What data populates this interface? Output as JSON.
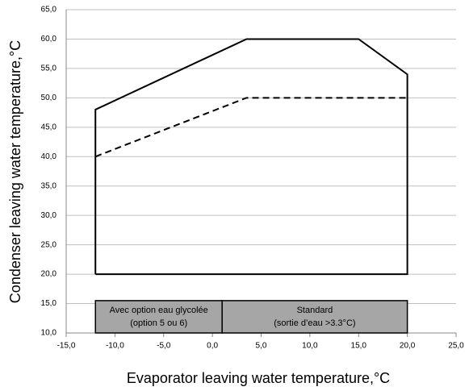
{
  "chart_data": {
    "type": "line",
    "xlabel": "Evaporator leaving water temperature,°C",
    "ylabel": "Condenser leaving water temperature,°C",
    "xlim": [
      -15,
      25
    ],
    "ylim": [
      10,
      65
    ],
    "xticks": [
      {
        "value": -15,
        "label": "-15,0"
      },
      {
        "value": -10,
        "label": "-10,0"
      },
      {
        "value": -5,
        "label": "-5,0"
      },
      {
        "value": 0,
        "label": "0,0"
      },
      {
        "value": 5,
        "label": "5,0"
      },
      {
        "value": 10,
        "label": "10,0"
      },
      {
        "value": 15,
        "label": "15,0"
      },
      {
        "value": 20,
        "label": "20,0"
      },
      {
        "value": 25,
        "label": "25,0"
      }
    ],
    "yticks": [
      {
        "value": 10,
        "label": "10,0"
      },
      {
        "value": 15,
        "label": "15,0"
      },
      {
        "value": 20,
        "label": "20,0"
      },
      {
        "value": 25,
        "label": "25,0"
      },
      {
        "value": 30,
        "label": "30,0"
      },
      {
        "value": 35,
        "label": "35,0"
      },
      {
        "value": 40,
        "label": "40,0"
      },
      {
        "value": 45,
        "label": "45,0"
      },
      {
        "value": 50,
        "label": "50,0"
      },
      {
        "value": 55,
        "label": "55,0"
      },
      {
        "value": 60,
        "label": "60,0"
      },
      {
        "value": 65,
        "label": "65,0"
      }
    ],
    "grid": true,
    "series": [
      {
        "color": "#000000",
        "dash": false,
        "x": [
          -12,
          -12,
          3.5,
          15,
          20,
          20,
          -12
        ],
        "values": [
          20,
          48,
          60,
          60,
          54,
          20,
          20
        ]
      },
      {
        "color": "#000000",
        "dash": true,
        "x": [
          -12,
          3.5,
          20
        ],
        "values": [
          40,
          50,
          50
        ]
      }
    ],
    "regions": [
      {
        "x": [
          -12,
          1
        ],
        "y": [
          10,
          15.5
        ],
        "color": "#a6a6a6",
        "lines": [
          "Avec option eau glycolée",
          "(option 5 ou 6)"
        ]
      },
      {
        "x": [
          1,
          20
        ],
        "y": [
          10,
          15.5
        ],
        "color": "#a6a6a6",
        "lines": [
          "Standard",
          "(sortie d’eau >3.3°C)"
        ]
      }
    ]
  }
}
